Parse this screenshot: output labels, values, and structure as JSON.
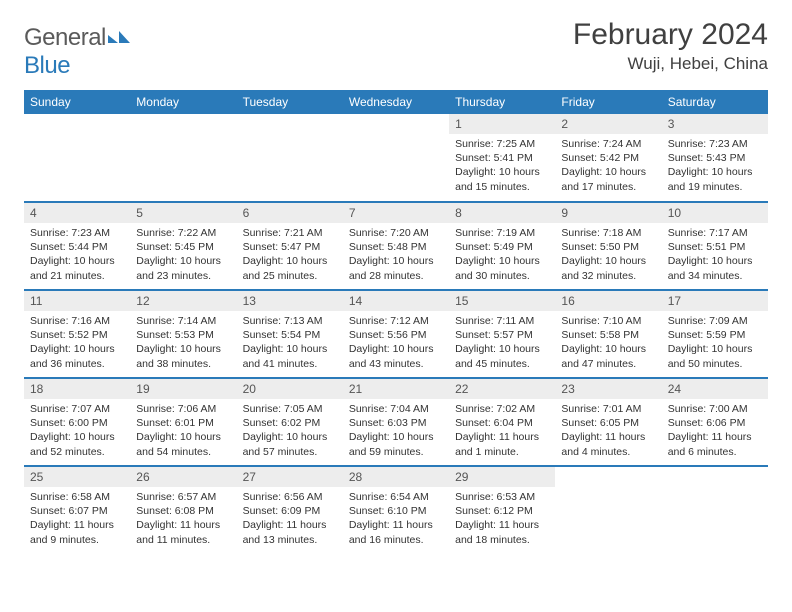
{
  "brand": {
    "part1": "General",
    "part2": "Blue"
  },
  "title": "February 2024",
  "location": "Wuji, Hebei, China",
  "colors": {
    "header_bg": "#2a7ab9",
    "header_text": "#ffffff",
    "daynum_bg": "#ededed",
    "border": "#2a7ab9",
    "text": "#333333",
    "title_text": "#404040"
  },
  "weekdays": [
    "Sunday",
    "Monday",
    "Tuesday",
    "Wednesday",
    "Thursday",
    "Friday",
    "Saturday"
  ],
  "weeks": [
    [
      null,
      null,
      null,
      null,
      {
        "n": "1",
        "sr": "Sunrise: 7:25 AM",
        "ss": "Sunset: 5:41 PM",
        "dl": "Daylight: 10 hours and 15 minutes."
      },
      {
        "n": "2",
        "sr": "Sunrise: 7:24 AM",
        "ss": "Sunset: 5:42 PM",
        "dl": "Daylight: 10 hours and 17 minutes."
      },
      {
        "n": "3",
        "sr": "Sunrise: 7:23 AM",
        "ss": "Sunset: 5:43 PM",
        "dl": "Daylight: 10 hours and 19 minutes."
      }
    ],
    [
      {
        "n": "4",
        "sr": "Sunrise: 7:23 AM",
        "ss": "Sunset: 5:44 PM",
        "dl": "Daylight: 10 hours and 21 minutes."
      },
      {
        "n": "5",
        "sr": "Sunrise: 7:22 AM",
        "ss": "Sunset: 5:45 PM",
        "dl": "Daylight: 10 hours and 23 minutes."
      },
      {
        "n": "6",
        "sr": "Sunrise: 7:21 AM",
        "ss": "Sunset: 5:47 PM",
        "dl": "Daylight: 10 hours and 25 minutes."
      },
      {
        "n": "7",
        "sr": "Sunrise: 7:20 AM",
        "ss": "Sunset: 5:48 PM",
        "dl": "Daylight: 10 hours and 28 minutes."
      },
      {
        "n": "8",
        "sr": "Sunrise: 7:19 AM",
        "ss": "Sunset: 5:49 PM",
        "dl": "Daylight: 10 hours and 30 minutes."
      },
      {
        "n": "9",
        "sr": "Sunrise: 7:18 AM",
        "ss": "Sunset: 5:50 PM",
        "dl": "Daylight: 10 hours and 32 minutes."
      },
      {
        "n": "10",
        "sr": "Sunrise: 7:17 AM",
        "ss": "Sunset: 5:51 PM",
        "dl": "Daylight: 10 hours and 34 minutes."
      }
    ],
    [
      {
        "n": "11",
        "sr": "Sunrise: 7:16 AM",
        "ss": "Sunset: 5:52 PM",
        "dl": "Daylight: 10 hours and 36 minutes."
      },
      {
        "n": "12",
        "sr": "Sunrise: 7:14 AM",
        "ss": "Sunset: 5:53 PM",
        "dl": "Daylight: 10 hours and 38 minutes."
      },
      {
        "n": "13",
        "sr": "Sunrise: 7:13 AM",
        "ss": "Sunset: 5:54 PM",
        "dl": "Daylight: 10 hours and 41 minutes."
      },
      {
        "n": "14",
        "sr": "Sunrise: 7:12 AM",
        "ss": "Sunset: 5:56 PM",
        "dl": "Daylight: 10 hours and 43 minutes."
      },
      {
        "n": "15",
        "sr": "Sunrise: 7:11 AM",
        "ss": "Sunset: 5:57 PM",
        "dl": "Daylight: 10 hours and 45 minutes."
      },
      {
        "n": "16",
        "sr": "Sunrise: 7:10 AM",
        "ss": "Sunset: 5:58 PM",
        "dl": "Daylight: 10 hours and 47 minutes."
      },
      {
        "n": "17",
        "sr": "Sunrise: 7:09 AM",
        "ss": "Sunset: 5:59 PM",
        "dl": "Daylight: 10 hours and 50 minutes."
      }
    ],
    [
      {
        "n": "18",
        "sr": "Sunrise: 7:07 AM",
        "ss": "Sunset: 6:00 PM",
        "dl": "Daylight: 10 hours and 52 minutes."
      },
      {
        "n": "19",
        "sr": "Sunrise: 7:06 AM",
        "ss": "Sunset: 6:01 PM",
        "dl": "Daylight: 10 hours and 54 minutes."
      },
      {
        "n": "20",
        "sr": "Sunrise: 7:05 AM",
        "ss": "Sunset: 6:02 PM",
        "dl": "Daylight: 10 hours and 57 minutes."
      },
      {
        "n": "21",
        "sr": "Sunrise: 7:04 AM",
        "ss": "Sunset: 6:03 PM",
        "dl": "Daylight: 10 hours and 59 minutes."
      },
      {
        "n": "22",
        "sr": "Sunrise: 7:02 AM",
        "ss": "Sunset: 6:04 PM",
        "dl": "Daylight: 11 hours and 1 minute."
      },
      {
        "n": "23",
        "sr": "Sunrise: 7:01 AM",
        "ss": "Sunset: 6:05 PM",
        "dl": "Daylight: 11 hours and 4 minutes."
      },
      {
        "n": "24",
        "sr": "Sunrise: 7:00 AM",
        "ss": "Sunset: 6:06 PM",
        "dl": "Daylight: 11 hours and 6 minutes."
      }
    ],
    [
      {
        "n": "25",
        "sr": "Sunrise: 6:58 AM",
        "ss": "Sunset: 6:07 PM",
        "dl": "Daylight: 11 hours and 9 minutes."
      },
      {
        "n": "26",
        "sr": "Sunrise: 6:57 AM",
        "ss": "Sunset: 6:08 PM",
        "dl": "Daylight: 11 hours and 11 minutes."
      },
      {
        "n": "27",
        "sr": "Sunrise: 6:56 AM",
        "ss": "Sunset: 6:09 PM",
        "dl": "Daylight: 11 hours and 13 minutes."
      },
      {
        "n": "28",
        "sr": "Sunrise: 6:54 AM",
        "ss": "Sunset: 6:10 PM",
        "dl": "Daylight: 11 hours and 16 minutes."
      },
      {
        "n": "29",
        "sr": "Sunrise: 6:53 AM",
        "ss": "Sunset: 6:12 PM",
        "dl": "Daylight: 11 hours and 18 minutes."
      },
      null,
      null
    ]
  ]
}
